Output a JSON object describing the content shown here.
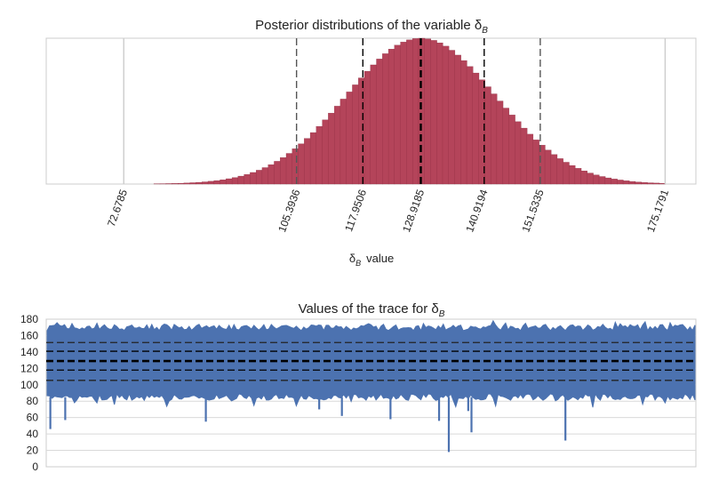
{
  "chart_data": [
    {
      "type": "bar",
      "title": "Posterior distributions of the variable δ",
      "title_subscript": "B",
      "xlabel": "δ",
      "xlabel_subscript": "B",
      "xlabel_suffix": "value",
      "ylabel": "",
      "xlim": [
        58,
        181
      ],
      "tick_values": [
        72.6785,
        105.3936,
        117.9506,
        128.9185,
        140.9194,
        151.5335,
        175.1791
      ],
      "tick_labels": [
        "72.6785",
        "105.3936",
        "117.9506",
        "128.9185",
        "140.9194",
        "151.5335",
        "175.1791"
      ],
      "reference_lines": [
        {
          "x": 72.6785,
          "style": "solid",
          "color": "#cccccc"
        },
        {
          "x": 105.3936,
          "style": "dashed",
          "color": "#555555"
        },
        {
          "x": 117.9506,
          "style": "dashed",
          "color": "#000000"
        },
        {
          "x": 128.9185,
          "style": "dashed-bold",
          "color": "#000000"
        },
        {
          "x": 140.9194,
          "style": "dashed",
          "color": "#000000"
        },
        {
          "x": 151.5335,
          "style": "dashed",
          "color": "#555555"
        },
        {
          "x": 175.1791,
          "style": "solid",
          "color": "#cccccc"
        }
      ],
      "histogram": {
        "mean": 128.9,
        "sd": 14.1,
        "range": [
          72.6785,
          175.1791
        ],
        "bins": 90,
        "color": "#b4445a"
      },
      "grid": false
    },
    {
      "type": "line",
      "title": "Values of the trace for δ",
      "title_subscript": "B",
      "xlabel": "",
      "ylabel": "",
      "ylim": [
        0,
        180
      ],
      "yticks": [
        0,
        20,
        40,
        60,
        80,
        100,
        120,
        140,
        160,
        180
      ],
      "band": {
        "mean": 129,
        "low": 85,
        "high": 170
      },
      "spikes": [
        {
          "pos": 0.005,
          "y": 46
        },
        {
          "pos": 0.028,
          "y": 57
        },
        {
          "pos": 0.245,
          "y": 55
        },
        {
          "pos": 0.455,
          "y": 62
        },
        {
          "pos": 0.53,
          "y": 58
        },
        {
          "pos": 0.605,
          "y": 56
        },
        {
          "pos": 0.62,
          "y": 18
        },
        {
          "pos": 0.655,
          "y": 42
        },
        {
          "pos": 0.8,
          "y": 32
        },
        {
          "pos": 0.65,
          "y": 68
        },
        {
          "pos": 0.42,
          "y": 70
        }
      ],
      "reference_lines": [
        {
          "y": 105.3936,
          "style": "dashed",
          "color": "#222222"
        },
        {
          "y": 117.9506,
          "style": "dashed",
          "color": "#000000"
        },
        {
          "y": 128.9185,
          "style": "dashed-bold",
          "color": "#000000"
        },
        {
          "y": 140.9194,
          "style": "dashed",
          "color": "#000000"
        },
        {
          "y": 151.5335,
          "style": "dashed",
          "color": "#222222"
        }
      ],
      "color": "#4c72b0",
      "grid": true
    }
  ]
}
